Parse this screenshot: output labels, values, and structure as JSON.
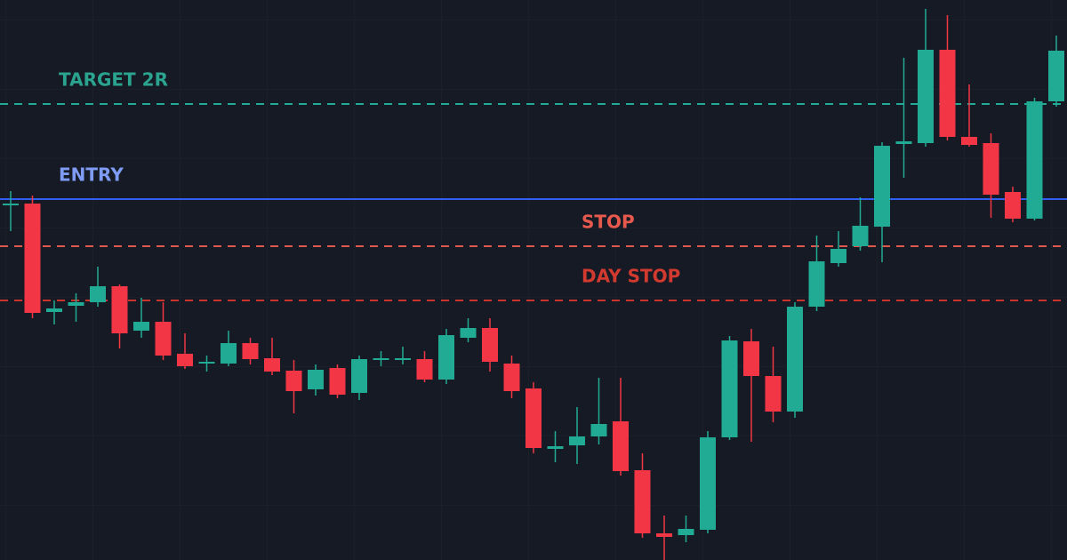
{
  "chart_data": {
    "type": "candlestick",
    "ylim": [
      0,
      630
    ],
    "up_color": "#22ab94",
    "down_color": "#f23645",
    "open": [
      399,
      401,
      279,
      286,
      290,
      308,
      258,
      268,
      232,
      221,
      221,
      244,
      227,
      213,
      192,
      216,
      188,
      225,
      225,
      226,
      203,
      250,
      261,
      221,
      193,
      125,
      129,
      139,
      156,
      101,
      30,
      28,
      34,
      138,
      246,
      207,
      167,
      285,
      334,
      353,
      375,
      468,
      469,
      574,
      476,
      469,
      414,
      384,
      516
    ],
    "high": [
      415,
      410,
      292,
      300,
      330,
      310,
      295,
      290,
      255,
      230,
      258,
      250,
      250,
      225,
      220,
      220,
      230,
      235,
      240,
      235,
      260,
      272,
      272,
      230,
      200,
      145,
      172,
      205,
      205,
      120,
      50,
      50,
      145,
      252,
      260,
      240,
      290,
      365,
      370,
      408,
      470,
      565,
      620,
      613,
      535,
      480,
      420,
      520,
      590
    ],
    "low": [
      370,
      272,
      265,
      268,
      285,
      238,
      250,
      225,
      215,
      212,
      218,
      220,
      208,
      165,
      185,
      182,
      180,
      218,
      220,
      200,
      198,
      245,
      212,
      182,
      120,
      110,
      108,
      130,
      95,
      25,
      0,
      20,
      30,
      135,
      133,
      155,
      160,
      280,
      330,
      348,
      335,
      430,
      465,
      472,
      465,
      385,
      380,
      382,
      510
    ],
    "close": [
      401,
      278,
      283,
      290,
      308,
      255,
      268,
      230,
      218,
      223,
      244,
      226,
      212,
      190,
      214,
      186,
      226,
      227,
      227,
      203,
      253,
      261,
      223,
      190,
      126,
      128,
      139,
      153,
      100,
      30,
      26,
      35,
      138,
      247,
      207,
      167,
      285,
      336,
      350,
      376,
      466,
      471,
      574,
      476,
      467,
      411,
      384,
      516,
      573
    ],
    "lines": [
      {
        "label": "TARGET 2R",
        "value": 513,
        "color": "#22ab94",
        "label_color": "#2aa38f",
        "dashed": true
      },
      {
        "label": "ENTRY",
        "value": 406,
        "color": "#2f5ef0",
        "label_color": "#7f9cf5",
        "dashed": false
      },
      {
        "label": "STOP",
        "value": 353,
        "color": "#e0584c",
        "label_color": "#e8594d",
        "dashed": true
      },
      {
        "label": "DAY STOP",
        "value": 292,
        "color": "#c9352c",
        "label_color": "#d23a30",
        "dashed": true
      }
    ]
  }
}
